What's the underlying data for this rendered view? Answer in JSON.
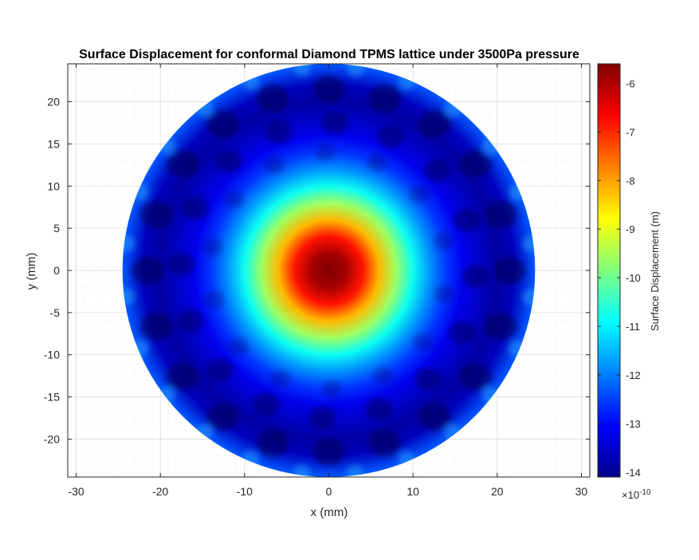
{
  "chart_data": {
    "type": "heatmap",
    "title": "Surface Displacement for conformal Diamond TPMS lattice under 3500Pa pressure",
    "xlabel": "x (mm)",
    "ylabel": "y (mm)",
    "xlim": [
      -31,
      31
    ],
    "ylim": [
      -24.5,
      24.5
    ],
    "xticks": [
      -30,
      -20,
      -10,
      0,
      10,
      20,
      30
    ],
    "yticks": [
      -20,
      -15,
      -10,
      -5,
      0,
      5,
      10,
      15,
      20
    ],
    "grid": true,
    "minor_grid": true,
    "disk_radius_mm": 24.5,
    "colormap": "jet",
    "colorbar": {
      "label": "Surface Displacement (m)",
      "clim": [
        -14.1,
        -5.6
      ],
      "ticks": [
        -14,
        -13,
        -12,
        -11,
        -10,
        -9,
        -8,
        -7,
        -6
      ],
      "exponent_label": "×10",
      "exponent": "-10"
    },
    "radial_profile": {
      "r_mm": [
        0,
        2,
        4,
        6,
        8,
        10,
        12,
        14,
        16,
        18,
        20,
        22,
        24.5
      ],
      "value_e10": [
        -5.6,
        -5.9,
        -6.8,
        -8.2,
        -9.6,
        -10.8,
        -11.8,
        -12.6,
        -13.2,
        -13.5,
        -13.8,
        -13.6,
        -12.3
      ]
    }
  }
}
